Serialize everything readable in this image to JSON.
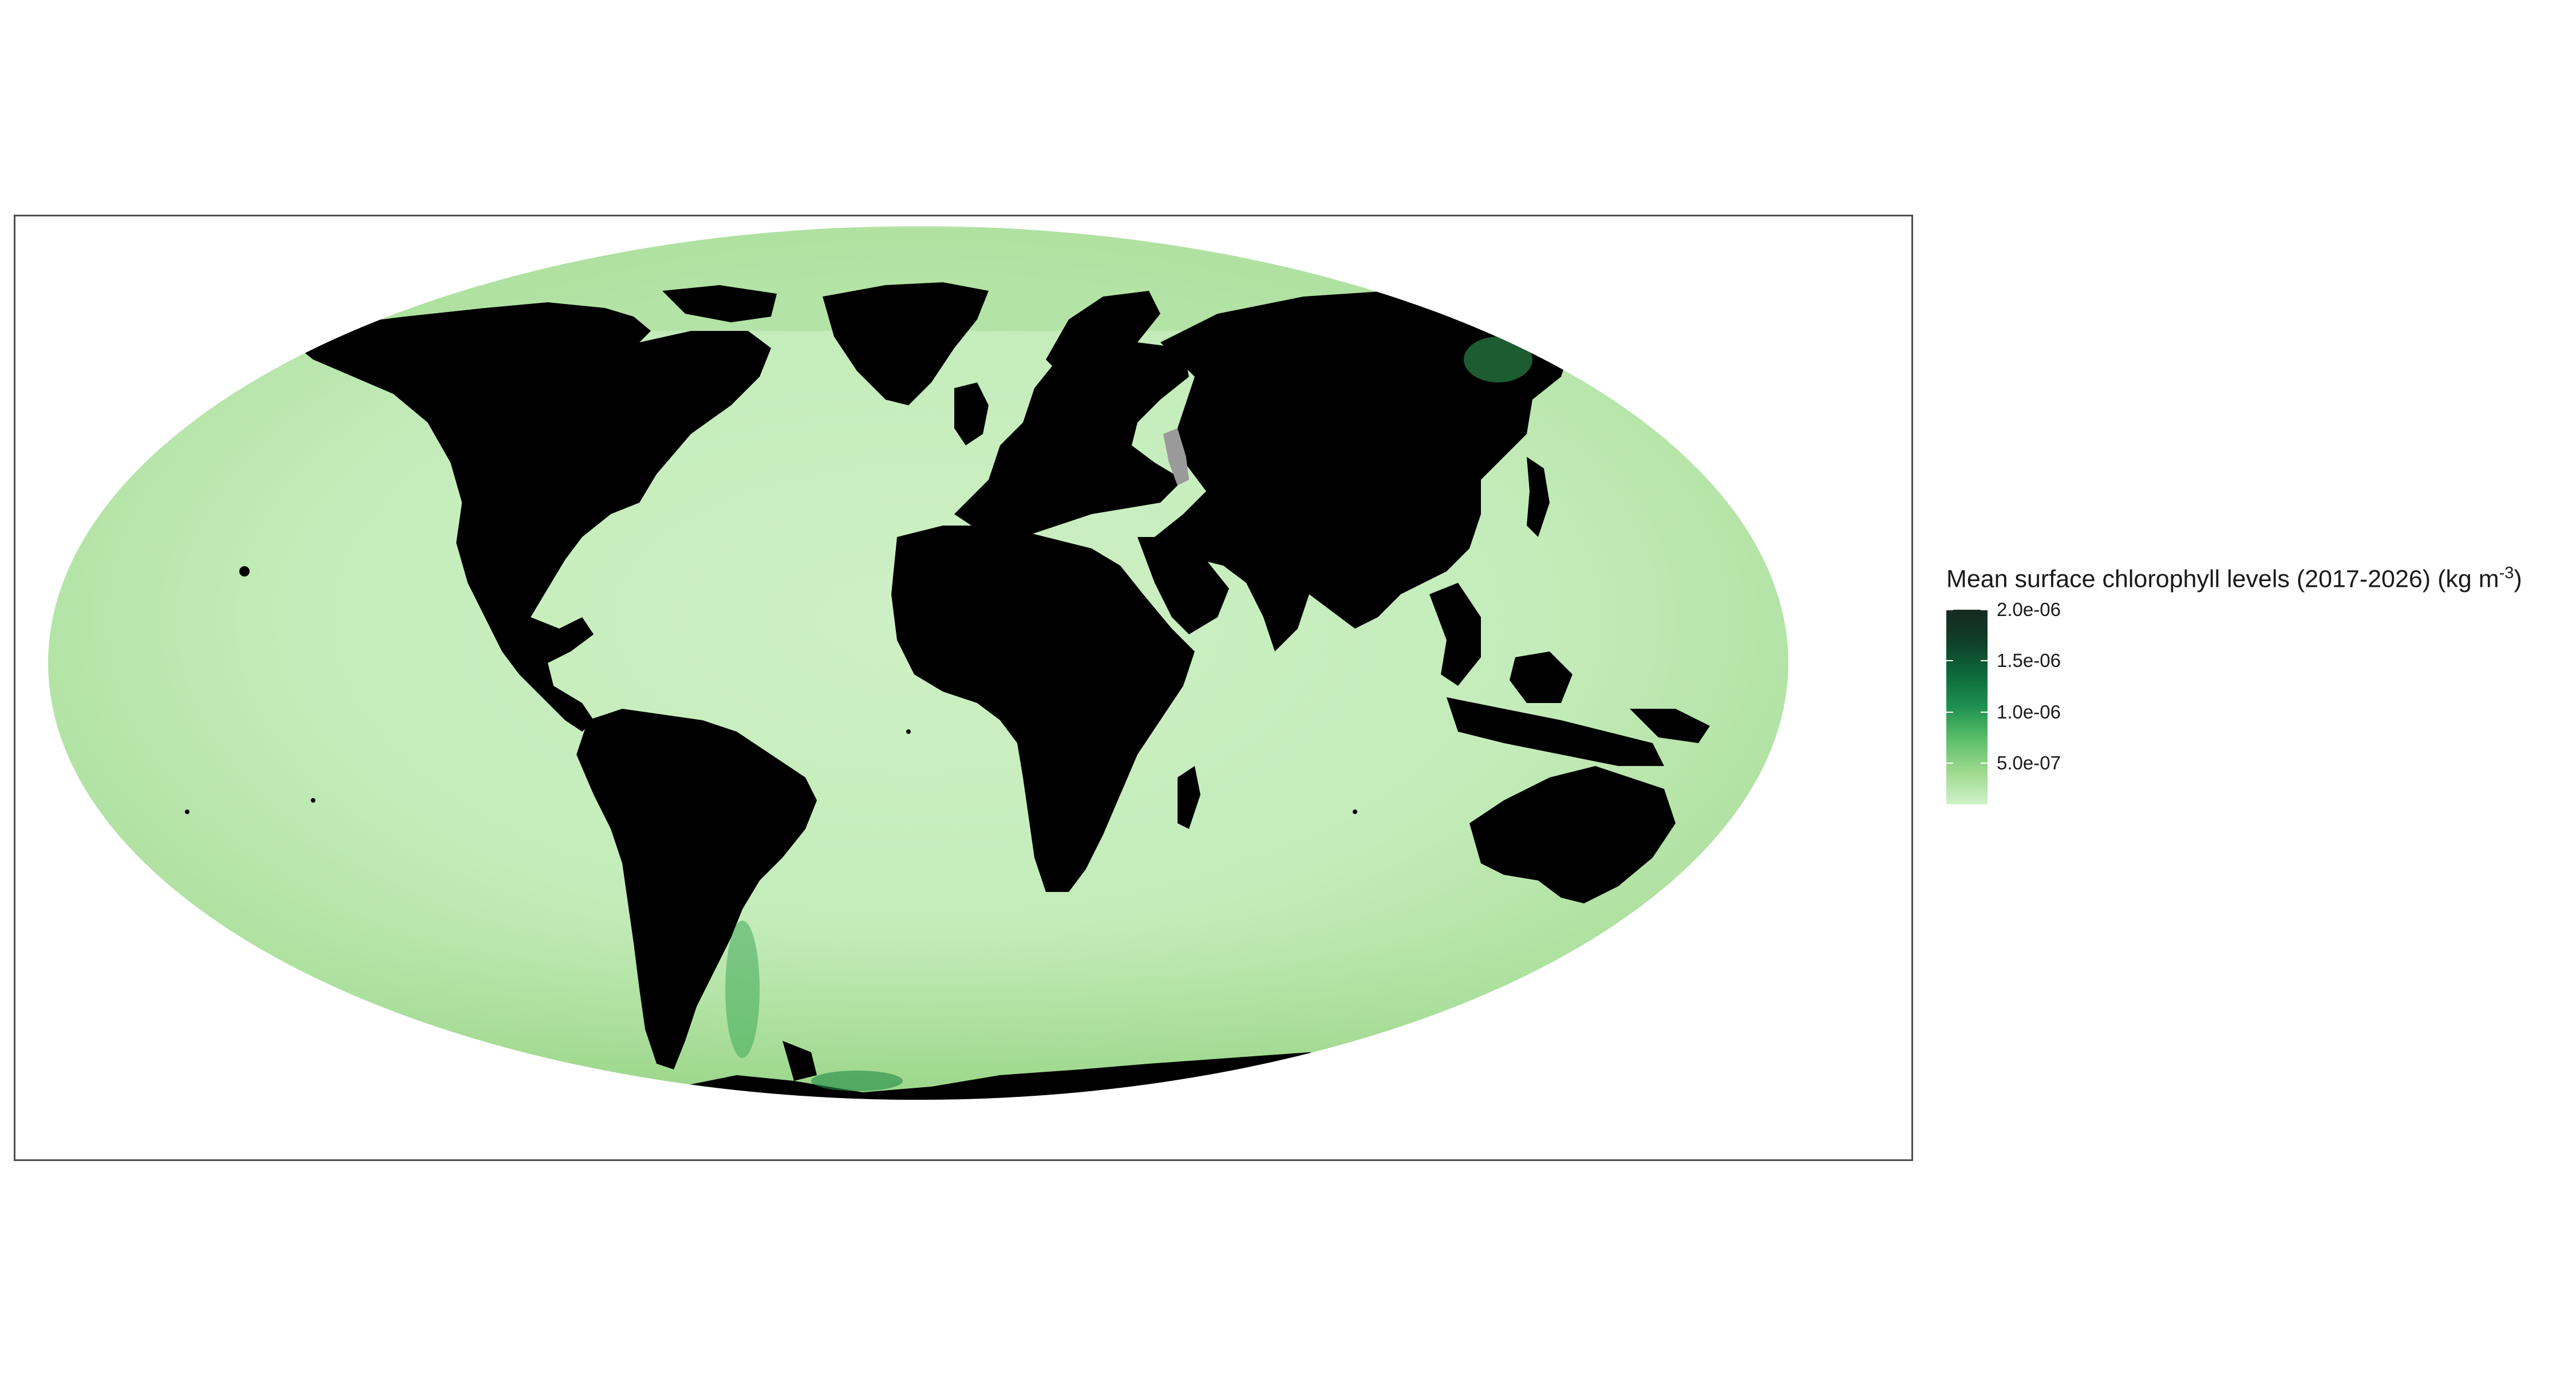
{
  "map": {
    "projection": "Mollweide",
    "ocean_fill_low": "#d4f3cc",
    "ocean_fill_mid": "#9fd88f",
    "ocean_fill_high": "#1a8a45",
    "land_fill": "#000000",
    "inland_water_fill": "#9a9a9a",
    "frame_color": "#4d4d4d"
  },
  "legend": {
    "title_main": "Mean surface chlorophyll levels (2017-2026) (kg m",
    "title_exponent": "-3",
    "title_close": ")",
    "colors": [
      "#cff2c8",
      "#9ed98f",
      "#5cbf6a",
      "#1f9150",
      "#0d6a3c",
      "#0f3f28",
      "#152a22"
    ],
    "ticks": [
      {
        "label": "2.0e-06",
        "value": 2e-06
      },
      {
        "label": "1.5e-06",
        "value": 1.5e-06
      },
      {
        "label": "1.0e-06",
        "value": 1e-06
      },
      {
        "label": "5.0e-07",
        "value": 5e-07
      }
    ],
    "min_value": 1e-07,
    "max_value": 2e-06
  }
}
